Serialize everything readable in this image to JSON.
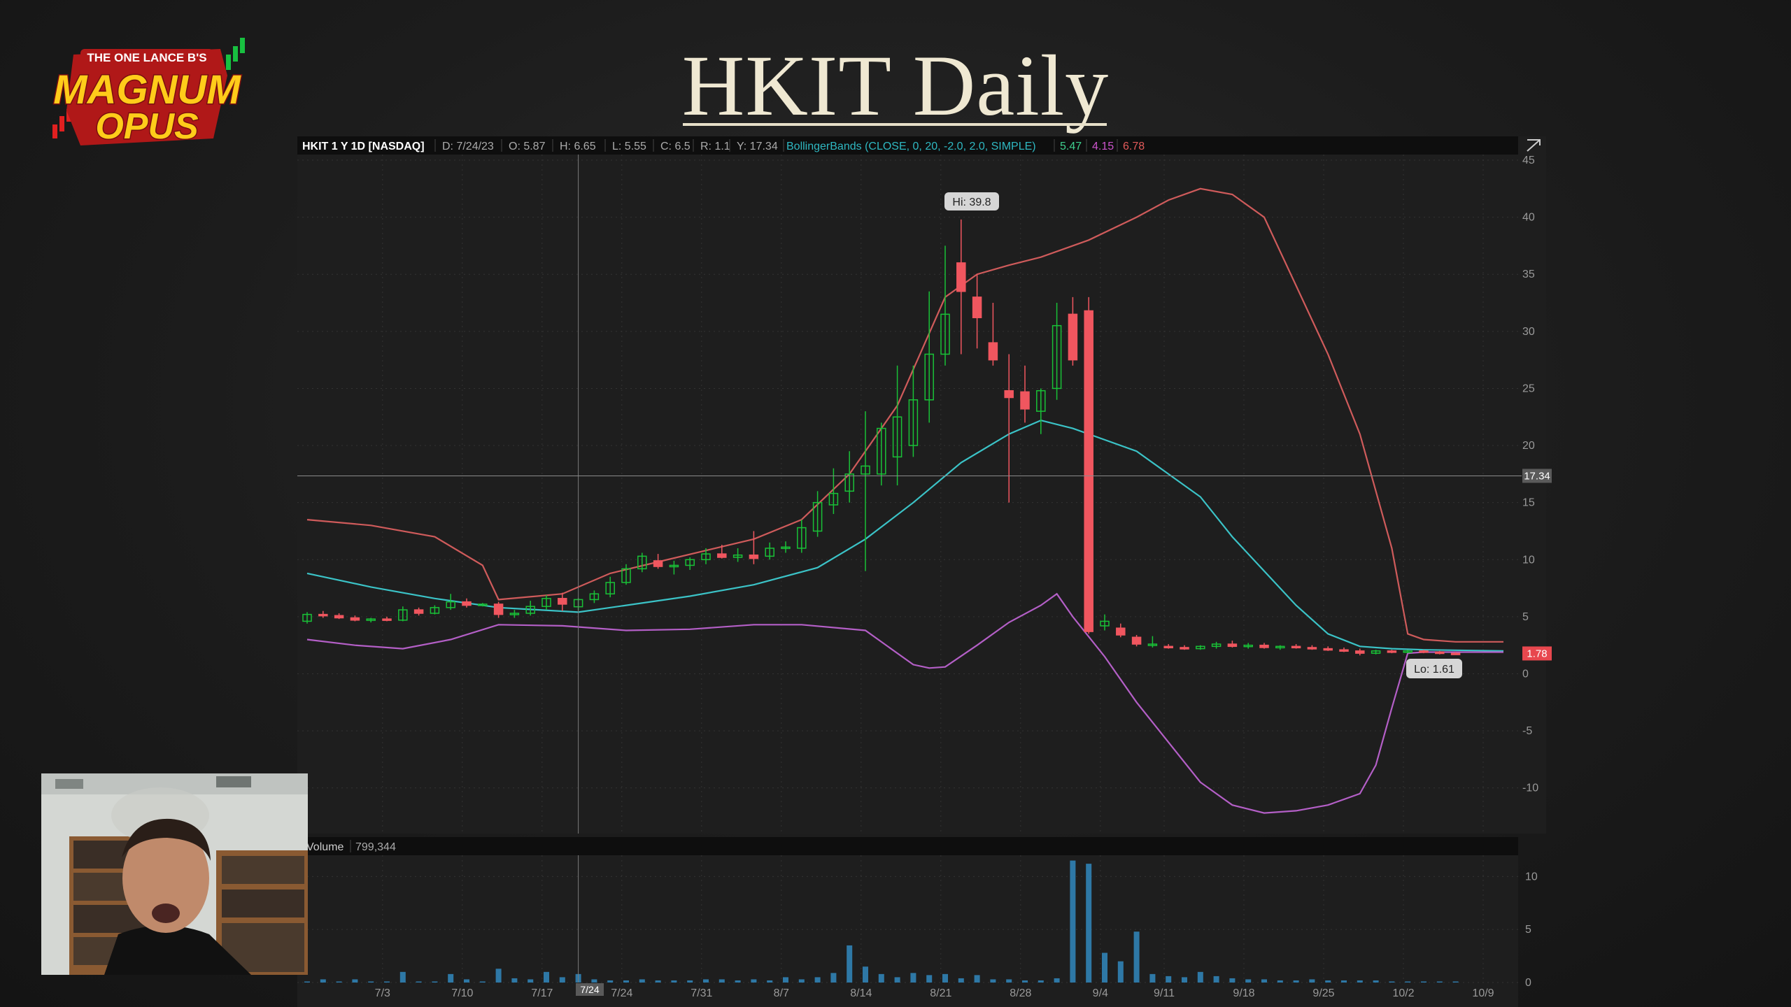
{
  "title": "HKIT Daily",
  "logo": {
    "top_text": "THE ONE LANCE B'S",
    "line1": "MAGNUM",
    "line2": "OPUS"
  },
  "header": {
    "symbol": "HKIT 1 Y 1D [NASDAQ]",
    "date": "D: 7/24/23",
    "open": "O: 5.87",
    "high": "H: 6.65",
    "low": "L: 5.55",
    "close": "C: 6.5",
    "range": "R: 1.1",
    "y": "Y: 17.34",
    "study": "BollingerBands (CLOSE, 0, 20, -2.0, 2.0, SIMPLE)",
    "mid_value": "5.47",
    "low_value": "4.15",
    "up_value": "6.78"
  },
  "volume_header": {
    "label": "Volume",
    "value": "799,344"
  },
  "markers": {
    "hi": "Hi: 39.8",
    "lo": "Lo: 1.61",
    "last_price": "1.78",
    "crosshair": "17.34",
    "crosshair_date": "7/24"
  },
  "colors": {
    "up": "#19c137",
    "down": "#f0565f",
    "upper_band": "#cf5b5b",
    "middle_band": "#3bc3c7",
    "lower_band": "#b45fc7",
    "volume": "#2e78a6",
    "study_label": "#2fb8c2",
    "mid_value": "#3fcf8e",
    "low_value": "#cc55cc",
    "up_value": "#e25a5a"
  },
  "chart_data": {
    "type": "candlestick",
    "price_axis": {
      "ylim": [
        -14,
        45
      ],
      "ticks": [
        45,
        40,
        35,
        30,
        25,
        20,
        15,
        10,
        5,
        0,
        -5,
        -10
      ]
    },
    "volume_axis": {
      "ylim": [
        0,
        12
      ],
      "ticks": [
        10,
        5,
        0
      ]
    },
    "x_labels": [
      "7/3",
      "7/10",
      "7/17",
      "7/24",
      "7/31",
      "8/7",
      "8/14",
      "8/21",
      "8/28",
      "9/4",
      "9/11",
      "9/18",
      "9/25",
      "10/2",
      "10/9"
    ],
    "x_label_positions": [
      1,
      6,
      11,
      16,
      21,
      26,
      31,
      36,
      41,
      46,
      50,
      55,
      60,
      65,
      70
    ],
    "crosshair": {
      "bar": 17,
      "price": 17.34
    },
    "candles": [
      {
        "i": 0,
        "o": 4.6,
        "h": 5.4,
        "l": 4.4,
        "c": 5.2
      },
      {
        "i": 1,
        "o": 5.2,
        "h": 5.5,
        "l": 4.9,
        "c": 5.1
      },
      {
        "i": 2,
        "o": 5.1,
        "h": 5.3,
        "l": 4.8,
        "c": 4.9
      },
      {
        "i": 3,
        "o": 4.9,
        "h": 5.1,
        "l": 4.6,
        "c": 4.7
      },
      {
        "i": 4,
        "o": 4.7,
        "h": 4.9,
        "l": 4.5,
        "c": 4.8
      },
      {
        "i": 5,
        "o": 4.8,
        "h": 5.0,
        "l": 4.6,
        "c": 4.7
      },
      {
        "i": 6,
        "o": 4.7,
        "h": 5.9,
        "l": 4.6,
        "c": 5.6
      },
      {
        "i": 7,
        "o": 5.6,
        "h": 5.8,
        "l": 5.1,
        "c": 5.3
      },
      {
        "i": 8,
        "o": 5.3,
        "h": 6.0,
        "l": 5.2,
        "c": 5.8
      },
      {
        "i": 9,
        "o": 5.8,
        "h": 7.0,
        "l": 5.6,
        "c": 6.3
      },
      {
        "i": 10,
        "o": 6.3,
        "h": 6.6,
        "l": 5.8,
        "c": 6.0
      },
      {
        "i": 11,
        "o": 6.0,
        "h": 6.2,
        "l": 5.9,
        "c": 6.1
      },
      {
        "i": 12,
        "o": 6.1,
        "h": 6.3,
        "l": 4.9,
        "c": 5.2
      },
      {
        "i": 13,
        "o": 5.2,
        "h": 5.6,
        "l": 4.9,
        "c": 5.3
      },
      {
        "i": 14,
        "o": 5.3,
        "h": 6.4,
        "l": 5.1,
        "c": 5.9
      },
      {
        "i": 15,
        "o": 5.9,
        "h": 6.9,
        "l": 5.6,
        "c": 6.6
      },
      {
        "i": 16,
        "o": 6.6,
        "h": 7.1,
        "l": 5.5,
        "c": 6.1
      },
      {
        "i": 17,
        "o": 5.87,
        "h": 6.65,
        "l": 5.55,
        "c": 6.5
      },
      {
        "i": 18,
        "o": 6.5,
        "h": 7.3,
        "l": 6.2,
        "c": 7.0
      },
      {
        "i": 19,
        "o": 7.0,
        "h": 8.5,
        "l": 6.7,
        "c": 8.0
      },
      {
        "i": 20,
        "o": 8.0,
        "h": 9.6,
        "l": 7.8,
        "c": 9.2
      },
      {
        "i": 21,
        "o": 9.2,
        "h": 10.6,
        "l": 8.9,
        "c": 10.3
      },
      {
        "i": 22,
        "o": 9.9,
        "h": 10.5,
        "l": 9.2,
        "c": 9.4
      },
      {
        "i": 23,
        "o": 9.4,
        "h": 9.9,
        "l": 8.7,
        "c": 9.5
      },
      {
        "i": 24,
        "o": 9.5,
        "h": 10.2,
        "l": 9.1,
        "c": 10.0
      },
      {
        "i": 25,
        "o": 10.0,
        "h": 11.0,
        "l": 9.6,
        "c": 10.5
      },
      {
        "i": 26,
        "o": 10.5,
        "h": 11.3,
        "l": 10.1,
        "c": 10.2
      },
      {
        "i": 27,
        "o": 10.2,
        "h": 11.0,
        "l": 9.8,
        "c": 10.4
      },
      {
        "i": 28,
        "o": 10.4,
        "h": 12.5,
        "l": 9.6,
        "c": 10.1
      },
      {
        "i": 29,
        "o": 10.3,
        "h": 11.5,
        "l": 10.0,
        "c": 11.0
      },
      {
        "i": 30,
        "o": 11.0,
        "h": 11.6,
        "l": 10.6,
        "c": 11.1
      },
      {
        "i": 31,
        "o": 11.0,
        "h": 13.5,
        "l": 10.6,
        "c": 12.8
      },
      {
        "i": 32,
        "o": 12.5,
        "h": 16.0,
        "l": 12.0,
        "c": 15.0
      },
      {
        "i": 33,
        "o": 14.8,
        "h": 18.0,
        "l": 14.0,
        "c": 15.8
      },
      {
        "i": 34,
        "o": 16.0,
        "h": 19.5,
        "l": 15.0,
        "c": 17.5
      },
      {
        "i": 35,
        "o": 17.5,
        "h": 23.0,
        "l": 9.0,
        "c": 18.2
      },
      {
        "i": 36,
        "o": 17.5,
        "h": 22.0,
        "l": 16.5,
        "c": 21.5
      },
      {
        "i": 37,
        "o": 19.0,
        "h": 27.0,
        "l": 16.5,
        "c": 22.5
      },
      {
        "i": 38,
        "o": 20.0,
        "h": 27.0,
        "l": 19.0,
        "c": 24.0
      },
      {
        "i": 39,
        "o": 24.0,
        "h": 33.5,
        "l": 22.0,
        "c": 28.0
      },
      {
        "i": 40,
        "o": 28.0,
        "h": 37.5,
        "l": 27.0,
        "c": 31.5
      },
      {
        "i": 41,
        "o": 36.0,
        "h": 39.8,
        "l": 28.0,
        "c": 33.5
      },
      {
        "i": 42,
        "o": 33.0,
        "h": 35.0,
        "l": 28.5,
        "c": 31.2
      },
      {
        "i": 43,
        "o": 29.0,
        "h": 32.5,
        "l": 27.0,
        "c": 27.5
      },
      {
        "i": 44,
        "o": 24.8,
        "h": 28.0,
        "l": 15.0,
        "c": 24.2
      },
      {
        "i": 45,
        "o": 24.7,
        "h": 27.0,
        "l": 22.0,
        "c": 23.2
      },
      {
        "i": 46,
        "o": 23.0,
        "h": 25.0,
        "l": 21.0,
        "c": 24.8
      },
      {
        "i": 47,
        "o": 25.0,
        "h": 32.5,
        "l": 24.0,
        "c": 30.5
      },
      {
        "i": 48,
        "o": 31.5,
        "h": 33.0,
        "l": 27.0,
        "c": 27.5
      },
      {
        "i": 49,
        "o": 31.8,
        "h": 33.0,
        "l": 3.5,
        "c": 3.7
      },
      {
        "i": 50,
        "o": 4.2,
        "h": 5.2,
        "l": 3.8,
        "c": 4.6
      },
      {
        "i": 51,
        "o": 4.0,
        "h": 4.4,
        "l": 3.2,
        "c": 3.4
      },
      {
        "i": 52,
        "o": 3.2,
        "h": 3.4,
        "l": 2.4,
        "c": 2.6
      },
      {
        "i": 53,
        "o": 2.5,
        "h": 3.3,
        "l": 2.3,
        "c": 2.6
      },
      {
        "i": 54,
        "o": 2.4,
        "h": 2.6,
        "l": 2.2,
        "c": 2.3
      },
      {
        "i": 55,
        "o": 2.3,
        "h": 2.5,
        "l": 2.1,
        "c": 2.2
      },
      {
        "i": 56,
        "o": 2.2,
        "h": 2.5,
        "l": 2.1,
        "c": 2.4
      },
      {
        "i": 57,
        "o": 2.4,
        "h": 2.8,
        "l": 2.2,
        "c": 2.6
      },
      {
        "i": 58,
        "o": 2.6,
        "h": 2.9,
        "l": 2.3,
        "c": 2.4
      },
      {
        "i": 59,
        "o": 2.4,
        "h": 2.7,
        "l": 2.2,
        "c": 2.5
      },
      {
        "i": 60,
        "o": 2.5,
        "h": 2.7,
        "l": 2.2,
        "c": 2.3
      },
      {
        "i": 61,
        "o": 2.3,
        "h": 2.5,
        "l": 2.1,
        "c": 2.4
      },
      {
        "i": 62,
        "o": 2.4,
        "h": 2.6,
        "l": 2.2,
        "c": 2.3
      },
      {
        "i": 63,
        "o": 2.3,
        "h": 2.5,
        "l": 2.1,
        "c": 2.2
      },
      {
        "i": 64,
        "o": 2.2,
        "h": 2.4,
        "l": 2.0,
        "c": 2.1
      },
      {
        "i": 65,
        "o": 2.1,
        "h": 2.3,
        "l": 1.9,
        "c": 2.0
      },
      {
        "i": 66,
        "o": 2.0,
        "h": 2.2,
        "l": 1.61,
        "c": 1.8
      },
      {
        "i": 67,
        "o": 1.8,
        "h": 2.1,
        "l": 1.7,
        "c": 2.0
      },
      {
        "i": 68,
        "o": 2.0,
        "h": 2.1,
        "l": 1.8,
        "c": 1.9
      },
      {
        "i": 69,
        "o": 1.9,
        "h": 2.1,
        "l": 1.8,
        "c": 2.0
      },
      {
        "i": 70,
        "o": 2.0,
        "h": 2.1,
        "l": 1.8,
        "c": 1.9
      },
      {
        "i": 71,
        "o": 1.9,
        "h": 2.0,
        "l": 1.7,
        "c": 1.8
      },
      {
        "i": 72,
        "o": 1.8,
        "h": 1.9,
        "l": 1.7,
        "c": 1.78
      }
    ],
    "bands": {
      "upper": [
        [
          0,
          13.5
        ],
        [
          4,
          13.0
        ],
        [
          8,
          12.0
        ],
        [
          11,
          9.5
        ],
        [
          12,
          6.5
        ],
        [
          16,
          7.0
        ],
        [
          19,
          8.8
        ],
        [
          22,
          9.8
        ],
        [
          25,
          10.8
        ],
        [
          28,
          11.8
        ],
        [
          31,
          13.5
        ],
        [
          34,
          17.5
        ],
        [
          37,
          23.5
        ],
        [
          40,
          33.0
        ],
        [
          42,
          35.0
        ],
        [
          44,
          35.8
        ],
        [
          46,
          36.5
        ],
        [
          49,
          38.0
        ],
        [
          52,
          40.0
        ],
        [
          54,
          41.5
        ],
        [
          56,
          42.5
        ],
        [
          58,
          42.0
        ],
        [
          60,
          40.0
        ],
        [
          62,
          34.0
        ],
        [
          64,
          28.0
        ],
        [
          66,
          21.0
        ],
        [
          68,
          11.0
        ],
        [
          69,
          3.5
        ],
        [
          70,
          3.0
        ],
        [
          72,
          2.8
        ],
        [
          75,
          2.8
        ]
      ],
      "middle": [
        [
          0,
          8.8
        ],
        [
          4,
          7.6
        ],
        [
          8,
          6.6
        ],
        [
          12,
          5.8
        ],
        [
          17,
          5.4
        ],
        [
          20,
          6.0
        ],
        [
          24,
          6.8
        ],
        [
          28,
          7.8
        ],
        [
          32,
          9.3
        ],
        [
          35,
          11.8
        ],
        [
          38,
          15.0
        ],
        [
          41,
          18.5
        ],
        [
          44,
          21.0
        ],
        [
          46,
          22.2
        ],
        [
          48,
          21.5
        ],
        [
          50,
          20.5
        ],
        [
          52,
          19.5
        ],
        [
          54,
          17.5
        ],
        [
          56,
          15.5
        ],
        [
          58,
          12.0
        ],
        [
          60,
          9.0
        ],
        [
          62,
          6.0
        ],
        [
          64,
          3.5
        ],
        [
          66,
          2.4
        ],
        [
          68,
          2.2
        ],
        [
          70,
          2.1
        ],
        [
          75,
          2.0
        ]
      ],
      "lower": [
        [
          0,
          3.0
        ],
        [
          3,
          2.5
        ],
        [
          6,
          2.2
        ],
        [
          9,
          3.0
        ],
        [
          12,
          4.3
        ],
        [
          16,
          4.2
        ],
        [
          20,
          3.8
        ],
        [
          24,
          3.9
        ],
        [
          28,
          4.3
        ],
        [
          31,
          4.3
        ],
        [
          35,
          3.8
        ],
        [
          38,
          0.8
        ],
        [
          39,
          0.5
        ],
        [
          40,
          0.6
        ],
        [
          42,
          2.5
        ],
        [
          44,
          4.5
        ],
        [
          46,
          6.0
        ],
        [
          47,
          7.0
        ],
        [
          48,
          5.0
        ],
        [
          50,
          1.5
        ],
        [
          52,
          -2.5
        ],
        [
          54,
          -6.0
        ],
        [
          56,
          -9.5
        ],
        [
          58,
          -11.5
        ],
        [
          60,
          -12.2
        ],
        [
          62,
          -12.0
        ],
        [
          64,
          -11.5
        ],
        [
          66,
          -10.5
        ],
        [
          67,
          -8.0
        ],
        [
          68,
          -3.0
        ],
        [
          69,
          1.8
        ],
        [
          70,
          1.9
        ],
        [
          75,
          1.9
        ]
      ]
    },
    "volume": [
      [
        0,
        0.1
      ],
      [
        1,
        0.3
      ],
      [
        2,
        0.1
      ],
      [
        3,
        0.3
      ],
      [
        4,
        0.1
      ],
      [
        5,
        0.1
      ],
      [
        6,
        1.0
      ],
      [
        7,
        0.1
      ],
      [
        8,
        0.1
      ],
      [
        9,
        0.8
      ],
      [
        10,
        0.3
      ],
      [
        11,
        0.1
      ],
      [
        12,
        1.3
      ],
      [
        13,
        0.4
      ],
      [
        14,
        0.3
      ],
      [
        15,
        1.0
      ],
      [
        16,
        0.5
      ],
      [
        17,
        0.8
      ],
      [
        18,
        0.3
      ],
      [
        19,
        0.2
      ],
      [
        20,
        0.2
      ],
      [
        21,
        0.3
      ],
      [
        22,
        0.2
      ],
      [
        23,
        0.2
      ],
      [
        24,
        0.2
      ],
      [
        25,
        0.3
      ],
      [
        26,
        0.3
      ],
      [
        27,
        0.2
      ],
      [
        28,
        0.3
      ],
      [
        29,
        0.2
      ],
      [
        30,
        0.5
      ],
      [
        31,
        0.3
      ],
      [
        32,
        0.5
      ],
      [
        33,
        0.9
      ],
      [
        34,
        3.5
      ],
      [
        35,
        1.5
      ],
      [
        36,
        0.8
      ],
      [
        37,
        0.5
      ],
      [
        38,
        0.9
      ],
      [
        39,
        0.7
      ],
      [
        40,
        0.8
      ],
      [
        41,
        0.4
      ],
      [
        42,
        0.7
      ],
      [
        43,
        0.3
      ],
      [
        44,
        0.3
      ],
      [
        45,
        0.2
      ],
      [
        46,
        0.2
      ],
      [
        47,
        0.4
      ],
      [
        48,
        11.5
      ],
      [
        49,
        11.2
      ],
      [
        50,
        2.8
      ],
      [
        51,
        2.0
      ],
      [
        52,
        4.8
      ],
      [
        53,
        0.8
      ],
      [
        54,
        0.6
      ],
      [
        55,
        0.5
      ],
      [
        56,
        1.0
      ],
      [
        57,
        0.6
      ],
      [
        58,
        0.4
      ],
      [
        59,
        0.3
      ],
      [
        60,
        0.3
      ],
      [
        61,
        0.2
      ],
      [
        62,
        0.2
      ],
      [
        63,
        0.3
      ],
      [
        64,
        0.2
      ],
      [
        65,
        0.2
      ],
      [
        66,
        0.2
      ],
      [
        67,
        0.2
      ],
      [
        68,
        0.1
      ],
      [
        69,
        0.1
      ],
      [
        70,
        0.1
      ],
      [
        71,
        0.1
      ],
      [
        72,
        0.1
      ]
    ]
  }
}
